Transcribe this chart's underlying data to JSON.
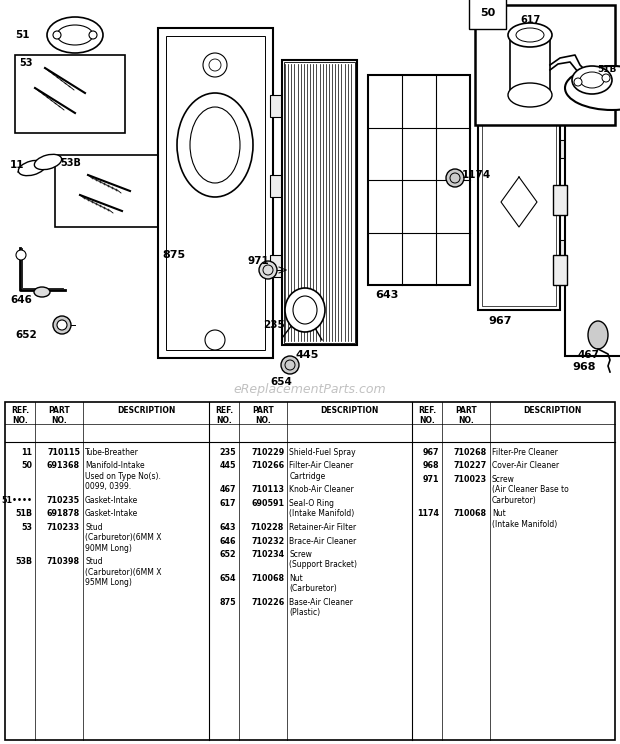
{
  "watermark": "eReplacementParts.com",
  "bg_color": "#ffffff",
  "table_rows_col1": [
    [
      "11",
      "710115",
      "Tube-Breather"
    ],
    [
      "50",
      "691368",
      "Manifold-Intake\nUsed on Type No(s).\n0099, 0399."
    ],
    [
      "51••••",
      "710235",
      "Gasket-Intake"
    ],
    [
      "51B",
      "691878",
      "Gasket-Intake"
    ],
    [
      "53",
      "710233",
      "Stud\n(Carburetor)(6MM X\n90MM Long)"
    ],
    [
      "53B",
      "710398",
      "Stud\n(Carburetor)(6MM X\n95MM Long)"
    ]
  ],
  "table_rows_col2": [
    [
      "235",
      "710229",
      "Shield-Fuel Spray"
    ],
    [
      "445",
      "710266",
      "Filter-Air Cleaner\nCartridge"
    ],
    [
      "467",
      "710113",
      "Knob-Air Cleaner"
    ],
    [
      "617",
      "690591",
      "Seal-O Ring\n(Intake Manifold)"
    ],
    [
      "643",
      "710228",
      "Retainer-Air Filter"
    ],
    [
      "646",
      "710232",
      "Brace-Air Cleaner"
    ],
    [
      "652",
      "710234",
      "Screw\n(Support Bracket)"
    ],
    [
      "654",
      "710068",
      "Nut\n(Carburetor)"
    ],
    [
      "875",
      "710226",
      "Base-Air Cleaner\n(Plastic)"
    ]
  ],
  "table_rows_col3": [
    [
      "967",
      "710268",
      "Filter-Pre Cleaner"
    ],
    [
      "968",
      "710227",
      "Cover-Air Cleaner"
    ],
    [
      "971",
      "710023",
      "Screw\n(Air Cleaner Base to\nCarburetor)"
    ],
    [
      "1174",
      "710068",
      "Nut\n(Intake Manifold)"
    ]
  ]
}
